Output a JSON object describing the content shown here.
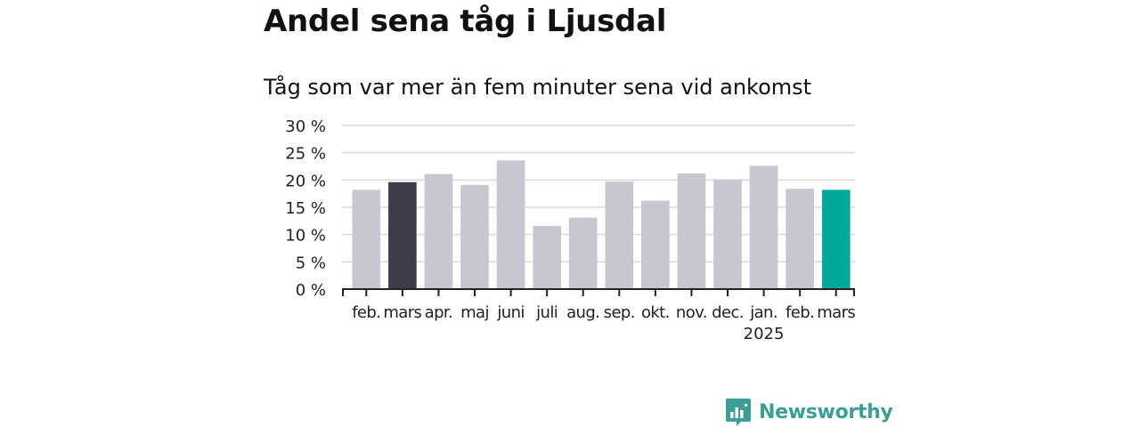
{
  "header": {
    "title": "Andel sena tåg i Ljusdal",
    "subtitle": "Tåg som var mer än fem minuter sena vid ankomst"
  },
  "brand": {
    "name": "Newsworthy",
    "icon": "newsworthy-logo-icon"
  },
  "colors": {
    "default_bar": "#c8c7d1",
    "previous_year_bar": "#3e3c48",
    "current_bar": "#00a79a",
    "grid": "#d9d9d9",
    "axis": "#222222",
    "brand": "#3d9d97"
  },
  "chart_data": {
    "type": "bar",
    "categories": [
      "feb.",
      "mars",
      "apr.",
      "maj",
      "juni",
      "juli",
      "aug.",
      "sep.",
      "okt.",
      "nov.",
      "dec.",
      "jan.",
      "feb.",
      "mars"
    ],
    "year_label": "2025",
    "year_label_under_index": 11,
    "values": [
      18.2,
      19.6,
      21.1,
      19.1,
      23.6,
      11.6,
      13.1,
      19.7,
      16.2,
      21.2,
      20.1,
      22.6,
      18.4,
      18.2
    ],
    "highlight": {
      "previous_year_index": 1,
      "current_index": 13
    },
    "ylim": [
      0,
      30
    ],
    "yticks": [
      0,
      5,
      10,
      15,
      20,
      25,
      30
    ],
    "ytick_labels": [
      "0 %",
      "5 %",
      "10 %",
      "15 %",
      "20 %",
      "25 %",
      "30 %"
    ],
    "grid": true,
    "xlabel": "",
    "ylabel": ""
  }
}
